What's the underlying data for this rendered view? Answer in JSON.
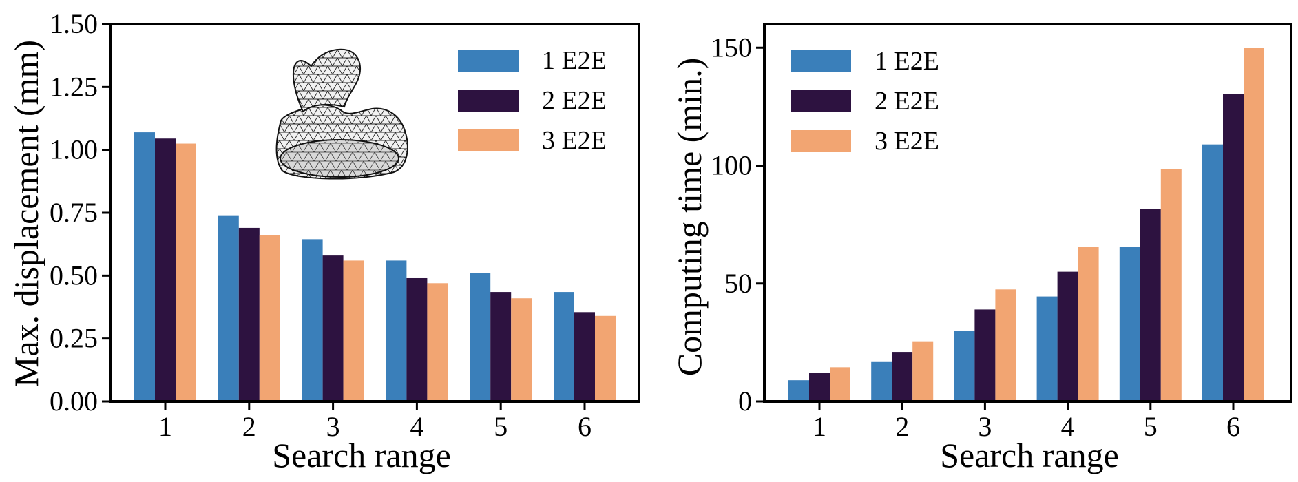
{
  "colors": {
    "series1": "#3a7fba",
    "series2": "#2d1240",
    "series3": "#f2a572",
    "axis": "#000000"
  },
  "chart_data": [
    {
      "type": "bar",
      "title": "",
      "xlabel": "Search range",
      "ylabel": "Max. displacement (mm)",
      "categories": [
        "1",
        "2",
        "3",
        "4",
        "5",
        "6"
      ],
      "series": [
        {
          "name": "1 E2E",
          "values": [
            1.07,
            0.74,
            0.645,
            0.56,
            0.51,
            0.435
          ]
        },
        {
          "name": "2 E2E",
          "values": [
            1.045,
            0.69,
            0.58,
            0.49,
            0.435,
            0.355
          ]
        },
        {
          "name": "3 E2E",
          "values": [
            1.025,
            0.66,
            0.56,
            0.47,
            0.41,
            0.34
          ]
        }
      ],
      "ylim": [
        0,
        1.5
      ],
      "yticks": [
        "0.00",
        "0.25",
        "0.50",
        "0.75",
        "1.00",
        "1.25",
        "1.50"
      ],
      "legend": "top-right",
      "inset": "wireframe-duck-mesh"
    },
    {
      "type": "bar",
      "title": "",
      "xlabel": "Search range",
      "ylabel": "Computing time (min.)",
      "categories": [
        "1",
        "2",
        "3",
        "4",
        "5",
        "6"
      ],
      "series": [
        {
          "name": "1 E2E",
          "values": [
            9,
            17,
            30,
            44.5,
            65.5,
            109
          ]
        },
        {
          "name": "2 E2E",
          "values": [
            12,
            21,
            39,
            55,
            81.5,
            130.5
          ]
        },
        {
          "name": "3 E2E",
          "values": [
            14.5,
            25.5,
            47.5,
            65.5,
            98.5,
            150
          ]
        }
      ],
      "ylim": [
        0,
        160
      ],
      "yticks": [
        "0",
        "50",
        "100",
        "150"
      ],
      "legend": "top-left"
    }
  ]
}
